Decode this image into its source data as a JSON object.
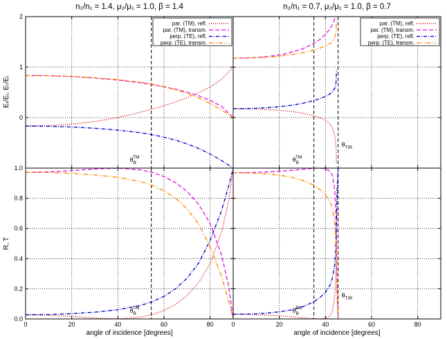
{
  "figure": {
    "x_label": "angle of incidence [degrees]",
    "y_label_top": "Eᵣ/Eᵢ, Eₜ/Eᵢ",
    "y_label_bottom": "R, T"
  },
  "legend": [
    {
      "name": "par. (TM), refl.",
      "color": "#cc0000",
      "dash": "1,2"
    },
    {
      "name": "par. (TM), transm.",
      "color": "#e020e0",
      "dash": "6,3"
    },
    {
      "name": "perp. (TE), refl.",
      "color": "#0000cc",
      "dash": "5,2,1,2"
    },
    {
      "name": "perp. (TE), transm.",
      "color": "#ff8800",
      "dash": "6,2,1,2,1,2"
    }
  ],
  "chart_data": [
    {
      "panel": "top-left",
      "type": "line",
      "title": "n₂/n₁ = 1.4, μ₂/μ₁ = 1.0, β = 1.4",
      "xlim": [
        0,
        90
      ],
      "ylim": [
        -1,
        2
      ],
      "yticks": [
        -1,
        0,
        1,
        2
      ],
      "show_xticklabels": false,
      "grid": true,
      "legend": "top-right",
      "x": [
        0,
        10,
        20,
        30,
        40,
        50,
        55,
        60,
        65,
        70,
        75,
        80,
        85,
        90
      ],
      "series": [
        {
          "name": "par. (TM), refl.",
          "values": [
            -0.167,
            -0.158,
            -0.13,
            -0.078,
            0.0,
            0.11,
            0.17,
            0.236,
            0.31,
            0.393,
            0.49,
            0.606,
            0.76,
            1.0
          ]
        },
        {
          "name": "par. (TM), transm.",
          "values": [
            0.833,
            0.829,
            0.814,
            0.784,
            0.743,
            0.687,
            0.652,
            0.611,
            0.563,
            0.505,
            0.433,
            0.342,
            0.222,
            0.0
          ]
        },
        {
          "name": "perp. (TE), refl.",
          "values": [
            -0.167,
            -0.171,
            -0.186,
            -0.211,
            -0.248,
            -0.3,
            -0.34,
            -0.388,
            -0.446,
            -0.52,
            -0.61,
            -0.72,
            -0.85,
            -1.0
          ]
        },
        {
          "name": "perp. (TE), transm.",
          "values": [
            0.833,
            0.829,
            0.814,
            0.789,
            0.752,
            0.7,
            0.66,
            0.612,
            0.554,
            0.48,
            0.39,
            0.28,
            0.15,
            0.0
          ]
        }
      ],
      "vlines": [
        {
          "x": 54.5,
          "label": "θ",
          "sub": "B",
          "sup": "TM"
        }
      ]
    },
    {
      "panel": "top-right",
      "type": "line",
      "title": "n₂/n₁ = 0.7, μ₂/μ₁ = 1.0, β = 0.7",
      "xlim": [
        0,
        90
      ],
      "ylim": [
        -1,
        2
      ],
      "show_xticklabels": false,
      "show_yticklabels": false,
      "grid": true,
      "legend": "top-right",
      "x": [
        0,
        5,
        10,
        15,
        20,
        25,
        30,
        35,
        38,
        40,
        42,
        43,
        44,
        44.4,
        44.6,
        44.8
      ],
      "series": [
        {
          "name": "par. (TM), refl.",
          "values": [
            0.176,
            0.174,
            0.169,
            0.16,
            0.145,
            0.123,
            0.089,
            0.036,
            -0.01,
            -0.055,
            -0.13,
            -0.2,
            -0.35,
            -0.48,
            -0.6,
            -0.92
          ]
        },
        {
          "name": "par. (TM), transm.",
          "values": [
            1.176,
            1.18,
            1.19,
            1.21,
            1.24,
            1.29,
            1.36,
            1.47,
            1.56,
            1.65,
            1.76,
            1.84,
            1.95,
            2.0,
            2.0,
            2.0
          ]
        },
        {
          "name": "perp. (TE), refl.",
          "values": [
            0.176,
            0.178,
            0.185,
            0.197,
            0.216,
            0.243,
            0.282,
            0.338,
            0.383,
            0.42,
            0.47,
            0.51,
            0.58,
            0.64,
            0.7,
            0.95
          ]
        },
        {
          "name": "perp. (TE), transm.",
          "values": [
            1.176,
            1.178,
            1.185,
            1.197,
            1.216,
            1.243,
            1.282,
            1.338,
            1.383,
            1.42,
            1.47,
            1.51,
            1.58,
            1.64,
            1.7,
            1.95
          ]
        }
      ],
      "vlines": [
        {
          "x": 35,
          "label": "θ",
          "sub": "B",
          "sup": "TM"
        },
        {
          "x": 45.5,
          "label": "θ",
          "sub": "TIR",
          "sup": ""
        }
      ]
    },
    {
      "panel": "bottom-left",
      "type": "line",
      "xlim": [
        0,
        90
      ],
      "ylim": [
        0,
        1
      ],
      "xticks": [
        0,
        20,
        40,
        60,
        80
      ],
      "yticks": [
        0.0,
        0.2,
        0.4,
        0.6,
        0.8,
        1.0
      ],
      "grid": true,
      "x": [
        0,
        10,
        20,
        30,
        40,
        50,
        55,
        60,
        65,
        70,
        75,
        80,
        85,
        88,
        90
      ],
      "series": [
        {
          "name": "par. (TM), refl.",
          "values": [
            0.028,
            0.025,
            0.017,
            0.006,
            0.0,
            0.012,
            0.029,
            0.056,
            0.096,
            0.154,
            0.24,
            0.367,
            0.578,
            0.78,
            1.0
          ]
        },
        {
          "name": "par. (TM), transm.",
          "values": [
            0.972,
            0.975,
            0.983,
            0.994,
            1.0,
            0.988,
            0.971,
            0.944,
            0.904,
            0.846,
            0.76,
            0.633,
            0.422,
            0.22,
            0.0
          ]
        },
        {
          "name": "perp. (TE), refl.",
          "values": [
            0.028,
            0.029,
            0.035,
            0.045,
            0.061,
            0.09,
            0.115,
            0.15,
            0.2,
            0.27,
            0.37,
            0.52,
            0.72,
            0.88,
            1.0
          ]
        },
        {
          "name": "perp. (TE), transm.",
          "values": [
            0.972,
            0.971,
            0.965,
            0.955,
            0.939,
            0.91,
            0.885,
            0.85,
            0.8,
            0.73,
            0.63,
            0.48,
            0.28,
            0.12,
            0.0
          ]
        }
      ],
      "vlines": [
        {
          "x": 54.5,
          "label": "θ",
          "sub": "B",
          "sup": "TM"
        }
      ]
    },
    {
      "panel": "bottom-right",
      "type": "line",
      "xlim": [
        0,
        90
      ],
      "ylim": [
        0,
        1
      ],
      "xticks": [
        0,
        20,
        40,
        60,
        80
      ],
      "show_yticklabels": false,
      "grid": true,
      "x": [
        0,
        5,
        10,
        15,
        20,
        25,
        30,
        35,
        38,
        40,
        42,
        43,
        44,
        44.4,
        44.7,
        45,
        45.5
      ],
      "series": [
        {
          "name": "par. (TM), refl.",
          "values": [
            0.031,
            0.03,
            0.028,
            0.025,
            0.021,
            0.015,
            0.008,
            0.001,
            0.0,
            0.004,
            0.02,
            0.05,
            0.14,
            0.25,
            0.4,
            0.75,
            1.0
          ]
        },
        {
          "name": "par. (TM), transm.",
          "values": [
            0.969,
            0.97,
            0.972,
            0.975,
            0.979,
            0.985,
            0.992,
            0.999,
            1.0,
            0.996,
            0.98,
            0.95,
            0.86,
            0.75,
            0.6,
            0.25,
            0.0
          ]
        },
        {
          "name": "perp. (TE), refl.",
          "values": [
            0.031,
            0.032,
            0.034,
            0.039,
            0.047,
            0.059,
            0.08,
            0.114,
            0.147,
            0.177,
            0.225,
            0.27,
            0.36,
            0.45,
            0.6,
            0.82,
            1.0
          ]
        },
        {
          "name": "perp. (TE), transm.",
          "values": [
            0.969,
            0.968,
            0.966,
            0.961,
            0.953,
            0.941,
            0.92,
            0.886,
            0.853,
            0.823,
            0.775,
            0.73,
            0.64,
            0.55,
            0.4,
            0.18,
            0.0
          ]
        }
      ],
      "vlines": [
        {
          "x": 35,
          "label": "θ",
          "sub": "B",
          "sup": "TM"
        },
        {
          "x": 45.5,
          "label": "θ",
          "sub": "TIR",
          "sup": ""
        }
      ]
    }
  ]
}
